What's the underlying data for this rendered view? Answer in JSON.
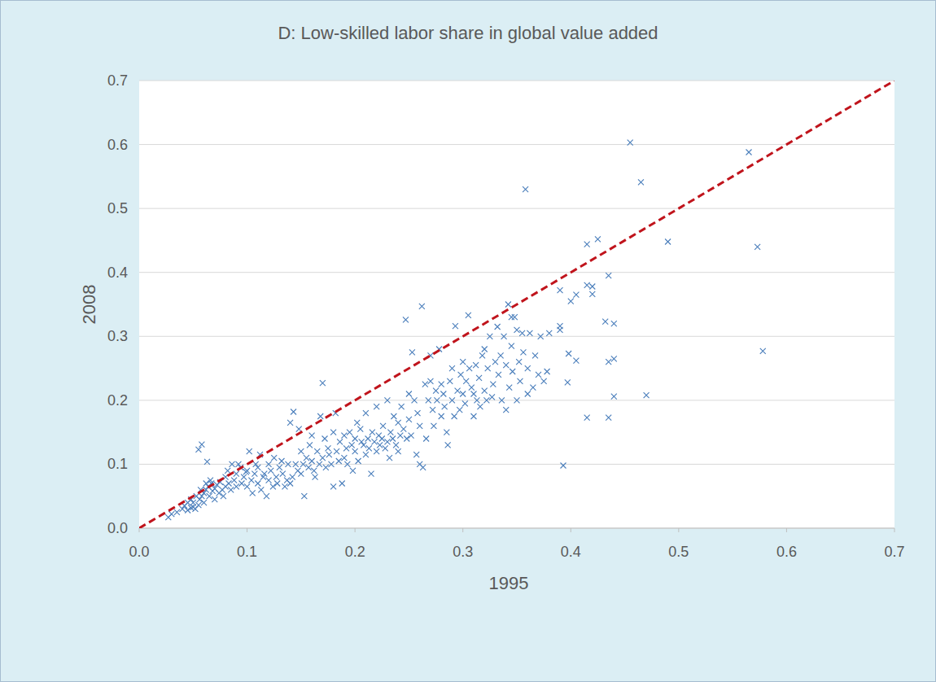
{
  "chart_data": {
    "type": "scatter",
    "title": "D: Low-skilled labor share in global value added",
    "x_label": "1995",
    "y_label": "2008",
    "xlim": [
      0,
      0.7
    ],
    "ylim": [
      0,
      0.7
    ],
    "xticks": [
      {
        "value": 0,
        "label": "0.0"
      },
      0.1,
      0.2,
      0.3,
      0.4,
      0.5,
      0.6,
      0.7
    ],
    "yticks": [
      {
        "value": 0,
        "label": "0.0"
      },
      0.1,
      0.2,
      0.3,
      0.4,
      0.5,
      0.6,
      0.7
    ],
    "grid": true,
    "series": [
      {
        "type": "scatter",
        "marker": "x",
        "color": "#4a7ebb",
        "x": [
          0.027,
          0.03,
          0.035,
          0.04,
          0.042,
          0.045,
          0.048,
          0.05,
          0.052,
          0.055,
          0.056,
          0.058,
          0.06,
          0.06,
          0.062,
          0.064,
          0.065,
          0.067,
          0.068,
          0.07,
          0.07,
          0.072,
          0.074,
          0.075,
          0.077,
          0.078,
          0.08,
          0.08,
          0.082,
          0.083,
          0.085,
          0.086,
          0.088,
          0.09,
          0.09,
          0.092,
          0.094,
          0.095,
          0.097,
          0.099,
          0.1,
          0.1,
          0.102,
          0.104,
          0.105,
          0.107,
          0.108,
          0.11,
          0.11,
          0.112,
          0.113,
          0.115,
          0.116,
          0.118,
          0.12,
          0.12,
          0.122,
          0.124,
          0.125,
          0.127,
          0.128,
          0.13,
          0.132,
          0.133,
          0.135,
          0.137,
          0.138,
          0.14,
          0.14,
          0.142,
          0.143,
          0.145,
          0.147,
          0.148,
          0.15,
          0.15,
          0.152,
          0.153,
          0.155,
          0.157,
          0.158,
          0.16,
          0.16,
          0.162,
          0.163,
          0.165,
          0.167,
          0.168,
          0.17,
          0.17,
          0.172,
          0.173,
          0.175,
          0.176,
          0.178,
          0.18,
          0.18,
          0.182,
          0.183,
          0.185,
          0.186,
          0.188,
          0.19,
          0.19,
          0.192,
          0.193,
          0.195,
          0.197,
          0.198,
          0.2,
          0.2,
          0.202,
          0.203,
          0.205,
          0.206,
          0.208,
          0.21,
          0.21,
          0.212,
          0.213,
          0.215,
          0.216,
          0.218,
          0.22,
          0.22,
          0.222,
          0.223,
          0.225,
          0.226,
          0.228,
          0.23,
          0.23,
          0.232,
          0.233,
          0.235,
          0.236,
          0.238,
          0.24,
          0.24,
          0.242,
          0.243,
          0.245,
          0.247,
          0.248,
          0.25,
          0.25,
          0.252,
          0.253,
          0.255,
          0.257,
          0.258,
          0.26,
          0.26,
          0.262,
          0.263,
          0.265,
          0.266,
          0.268,
          0.27,
          0.27,
          0.272,
          0.273,
          0.275,
          0.276,
          0.278,
          0.28,
          0.28,
          0.282,
          0.283,
          0.285,
          0.286,
          0.288,
          0.29,
          0.29,
          0.292,
          0.293,
          0.295,
          0.297,
          0.298,
          0.3,
          0.3,
          0.302,
          0.303,
          0.305,
          0.306,
          0.308,
          0.31,
          0.31,
          0.312,
          0.313,
          0.315,
          0.316,
          0.318,
          0.32,
          0.32,
          0.322,
          0.323,
          0.325,
          0.327,
          0.328,
          0.33,
          0.332,
          0.333,
          0.335,
          0.336,
          0.338,
          0.34,
          0.34,
          0.342,
          0.343,
          0.345,
          0.346,
          0.348,
          0.35,
          0.35,
          0.352,
          0.353,
          0.355,
          0.356,
          0.358,
          0.36,
          0.36,
          0.362,
          0.365,
          0.367,
          0.37,
          0.372,
          0.375,
          0.378,
          0.38,
          0.39,
          0.39,
          0.39,
          0.393,
          0.397,
          0.398,
          0.4,
          0.405,
          0.405,
          0.415,
          0.415,
          0.415,
          0.42,
          0.42,
          0.425,
          0.432,
          0.435,
          0.435,
          0.435,
          0.44,
          0.44,
          0.44,
          0.455,
          0.465,
          0.47,
          0.49,
          0.565,
          0.573,
          0.578,
          0.345,
          0.055,
          0.058,
          0.063,
          0.048,
          0.045,
          0.05,
          0.053,
          0.057,
          0.062,
          0.066
        ],
        "values": [
          0.017,
          0.022,
          0.025,
          0.03,
          0.035,
          0.028,
          0.032,
          0.04,
          0.03,
          0.036,
          0.045,
          0.05,
          0.055,
          0.04,
          0.06,
          0.065,
          0.05,
          0.07,
          0.058,
          0.062,
          0.045,
          0.068,
          0.055,
          0.072,
          0.06,
          0.05,
          0.065,
          0.08,
          0.09,
          0.07,
          0.06,
          0.1,
          0.075,
          0.085,
          0.065,
          0.1,
          0.095,
          0.07,
          0.08,
          0.088,
          0.065,
          0.09,
          0.12,
          0.075,
          0.055,
          0.085,
          0.1,
          0.07,
          0.095,
          0.115,
          0.06,
          0.08,
          0.085,
          0.05,
          0.075,
          0.1,
          0.09,
          0.065,
          0.11,
          0.08,
          0.07,
          0.095,
          0.105,
          0.085,
          0.065,
          0.075,
          0.1,
          0.07,
          0.165,
          0.08,
          0.182,
          0.1,
          0.09,
          0.155,
          0.12,
          0.085,
          0.1,
          0.05,
          0.11,
          0.095,
          0.13,
          0.105,
          0.145,
          0.09,
          0.08,
          0.12,
          0.1,
          0.175,
          0.11,
          0.227,
          0.14,
          0.095,
          0.125,
          0.115,
          0.1,
          0.15,
          0.065,
          0.18,
          0.12,
          0.105,
          0.135,
          0.07,
          0.145,
          0.11,
          0.125,
          0.1,
          0.15,
          0.13,
          0.09,
          0.14,
          0.12,
          0.165,
          0.105,
          0.155,
          0.135,
          0.13,
          0.115,
          0.18,
          0.14,
          0.125,
          0.085,
          0.15,
          0.135,
          0.12,
          0.19,
          0.145,
          0.13,
          0.14,
          0.16,
          0.125,
          0.135,
          0.2,
          0.11,
          0.15,
          0.14,
          0.175,
          0.13,
          0.165,
          0.12,
          0.145,
          0.19,
          0.155,
          0.326,
          0.14,
          0.17,
          0.21,
          0.145,
          0.275,
          0.2,
          0.115,
          0.18,
          0.1,
          0.16,
          0.347,
          0.095,
          0.225,
          0.14,
          0.2,
          0.23,
          0.27,
          0.185,
          0.16,
          0.215,
          0.2,
          0.28,
          0.175,
          0.225,
          0.21,
          0.19,
          0.15,
          0.13,
          0.23,
          0.2,
          0.25,
          0.175,
          0.316,
          0.215,
          0.185,
          0.24,
          0.21,
          0.26,
          0.195,
          0.23,
          0.333,
          0.25,
          0.22,
          0.175,
          0.21,
          0.255,
          0.2,
          0.235,
          0.19,
          0.27,
          0.215,
          0.28,
          0.2,
          0.25,
          0.3,
          0.205,
          0.225,
          0.26,
          0.315,
          0.24,
          0.27,
          0.2,
          0.3,
          0.255,
          0.185,
          0.35,
          0.22,
          0.285,
          0.245,
          0.33,
          0.2,
          0.31,
          0.26,
          0.23,
          0.305,
          0.275,
          0.53,
          0.25,
          0.21,
          0.305,
          0.22,
          0.27,
          0.24,
          0.3,
          0.23,
          0.245,
          0.305,
          0.372,
          0.316,
          0.31,
          0.098,
          0.228,
          0.273,
          0.355,
          0.365,
          0.262,
          0.444,
          0.38,
          0.173,
          0.378,
          0.366,
          0.452,
          0.323,
          0.395,
          0.26,
          0.173,
          0.32,
          0.265,
          0.206,
          0.603,
          0.541,
          0.208,
          0.448,
          0.588,
          0.44,
          0.277,
          0.33,
          0.123,
          0.131,
          0.104,
          0.045,
          0.04,
          0.033,
          0.05,
          0.06,
          0.07,
          0.075
        ]
      },
      {
        "type": "line",
        "line_style": "dashed",
        "color": "#c0141c",
        "x": [
          0,
          0.7
        ],
        "values": [
          0,
          0.7
        ]
      }
    ]
  }
}
